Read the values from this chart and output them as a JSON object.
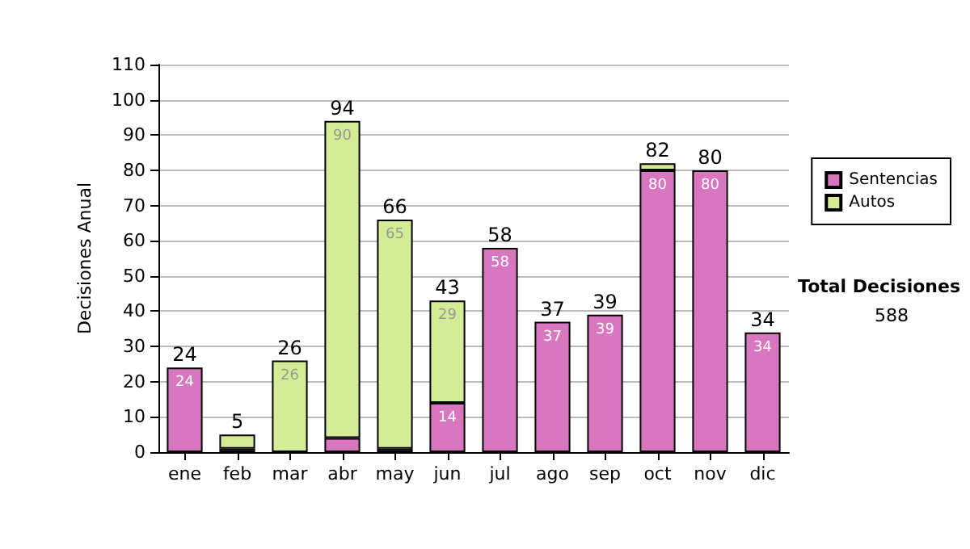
{
  "chart_data": {
    "type": "bar",
    "stacked": true,
    "ylabel": "Decisiones Anual",
    "categories": [
      "ene",
      "feb",
      "mar",
      "abr",
      "may",
      "jun",
      "jul",
      "ago",
      "sep",
      "oct",
      "nov",
      "dic"
    ],
    "series": [
      {
        "name": "Sentencias",
        "color": "#d877bf",
        "values": [
          24,
          1,
          0,
          4,
          1,
          14,
          58,
          37,
          39,
          80,
          80,
          34
        ],
        "value_labels": [
          "24",
          null,
          null,
          null,
          null,
          "14",
          "58",
          "37",
          "39",
          "80",
          "80",
          "34"
        ]
      },
      {
        "name": "Autos",
        "color": "#d4ec94",
        "values": [
          0,
          4,
          26,
          90,
          65,
          29,
          0,
          0,
          0,
          2,
          0,
          0
        ],
        "value_labels": [
          null,
          null,
          "26",
          "90",
          "65",
          "29",
          null,
          null,
          null,
          null,
          null,
          null
        ]
      }
    ],
    "totals": [
      "24",
      "5",
      "26",
      "94",
      "66",
      "43",
      "58",
      "37",
      "39",
      "82",
      "80",
      "34"
    ],
    "ylim": [
      0,
      110
    ],
    "yticks": [
      0,
      10,
      20,
      30,
      40,
      50,
      60,
      70,
      80,
      90,
      100,
      110
    ],
    "grid": "y",
    "legend": "right",
    "annotations": [
      "Total Decisiones",
      "588"
    ]
  }
}
